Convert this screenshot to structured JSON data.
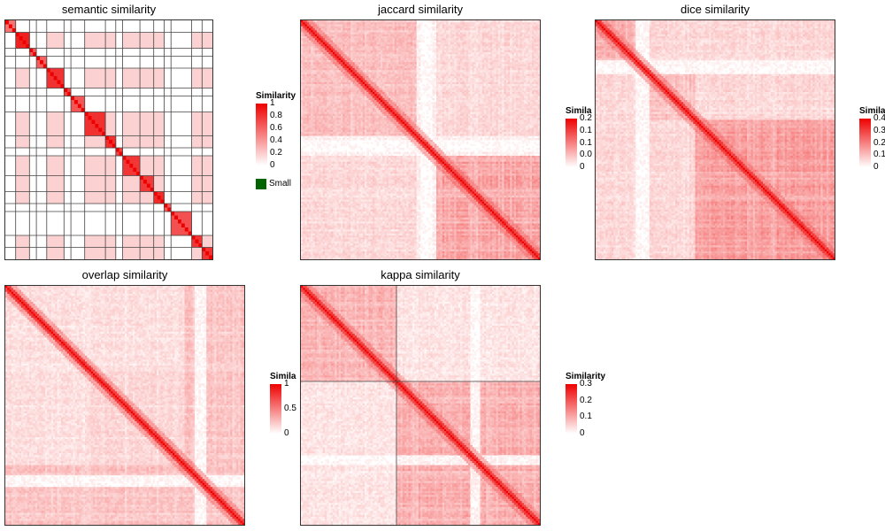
{
  "chart_data": [
    {
      "type": "heatmap",
      "title": "semantic similarity",
      "legend": {
        "title": "Similarity",
        "ticks": [
          "1",
          "0.8",
          "0.6",
          "0.4",
          "0.2",
          "0"
        ],
        "max": 1,
        "extra_label": "Small",
        "extra_color": "#006400"
      },
      "structure": {
        "n": 60,
        "blocks": [
          3,
          4,
          2,
          3,
          5,
          2,
          4,
          6,
          3,
          2,
          5,
          4,
          3,
          2,
          6,
          3,
          3
        ],
        "within_block": 0.25,
        "diagonal": 1.0,
        "grid_lines": true
      }
    },
    {
      "type": "heatmap",
      "title": "jaccard similarity",
      "legend": {
        "title": "Similarity",
        "ticks": [
          "0.2",
          "0.1",
          "0.1",
          "0.0",
          "0"
        ],
        "max": 0.25
      },
      "structure": {
        "n": 120,
        "blocks": [
          58,
          10,
          52
        ],
        "diagonal": 0.25,
        "grid_lines": false
      }
    },
    {
      "type": "heatmap",
      "title": "dice similarity",
      "legend": {
        "title": "Similarity",
        "ticks": [
          "0.4",
          "0.3",
          "0.2",
          "0.1",
          "0"
        ],
        "max": 0.4
      },
      "structure": {
        "n": 120,
        "blocks": [
          20,
          30,
          70
        ],
        "diagonal": 0.4,
        "grid_lines": false
      }
    },
    {
      "type": "heatmap",
      "title": "overlap similarity",
      "legend": {
        "title": "Similarity",
        "ticks": [
          "1",
          "0.5",
          "0"
        ],
        "max": 1
      },
      "structure": {
        "n": 120,
        "blocks": [
          40,
          50,
          30
        ],
        "diagonal": 1.0,
        "grid_lines": false
      }
    },
    {
      "type": "heatmap",
      "title": "kappa similarity",
      "legend": {
        "title": "Similarity",
        "ticks": [
          "0.3",
          "0.2",
          "0.1",
          "0"
        ],
        "max": 0.3
      },
      "structure": {
        "n": 120,
        "blocks": [
          48,
          72
        ],
        "diagonal": 0.3,
        "grid_lines": true
      }
    }
  ],
  "colors": {
    "low": "#ffffff",
    "high": "#ee0000",
    "grid": "#444444",
    "border": "#333333"
  }
}
